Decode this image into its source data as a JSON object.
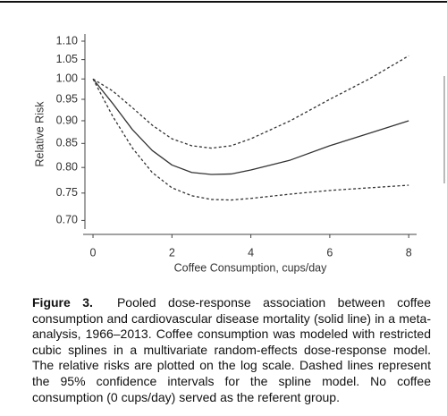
{
  "chart_data": {
    "type": "line",
    "ylabel": "Relative Risk",
    "xlabel": "Coffee Consumption, cups/day",
    "x": [
      0,
      0.5,
      1,
      1.5,
      2,
      2.5,
      3,
      3.5,
      4,
      5,
      6,
      7,
      8
    ],
    "series": [
      {
        "color": "#333333",
        "style": "solid",
        "values": [
          1.0,
          0.94,
          0.88,
          0.835,
          0.805,
          0.79,
          0.786,
          0.787,
          0.795,
          0.815,
          0.845,
          0.872,
          0.9
        ]
      },
      {
        "color": "#333333",
        "style": "dashed",
        "values": [
          1.0,
          0.97,
          0.93,
          0.89,
          0.86,
          0.845,
          0.84,
          0.845,
          0.86,
          0.9,
          0.95,
          1.0,
          1.06
        ]
      },
      {
        "color": "#333333",
        "style": "dashed",
        "values": [
          1.0,
          0.91,
          0.84,
          0.79,
          0.76,
          0.745,
          0.738,
          0.737,
          0.74,
          0.748,
          0.755,
          0.76,
          0.765
        ]
      }
    ],
    "xlim": [
      -0.25,
      8.2
    ],
    "ylim": [
      0.685,
      1.12
    ],
    "ylog": true,
    "xticks": [
      0,
      2,
      4,
      6,
      8
    ],
    "yticks": [
      {
        "value": 1.1,
        "label": "1.10"
      },
      1.05,
      {
        "value": 1.0,
        "label": "1.00"
      },
      0.95,
      {
        "value": 0.9,
        "label": "0.90"
      },
      0.85,
      {
        "value": 0.8,
        "label": "0.80"
      },
      0.75,
      {
        "value": 0.7,
        "label": "0.70"
      }
    ]
  },
  "caption": {
    "label": "Figure 3.",
    "text": "Pooled dose-response association between coffee consumption and cardiovascular disease mortality (solid line) in a meta-analysis, 1966–2013. Coffee consumption was modeled with restricted cubic splines in a multivariate random-effects dose-response model. The relative risks are plotted on the log scale. Dashed lines represent the 95% confidence intervals for the spline model. No coffee consumption (0 cups/day) served as the referent group."
  }
}
